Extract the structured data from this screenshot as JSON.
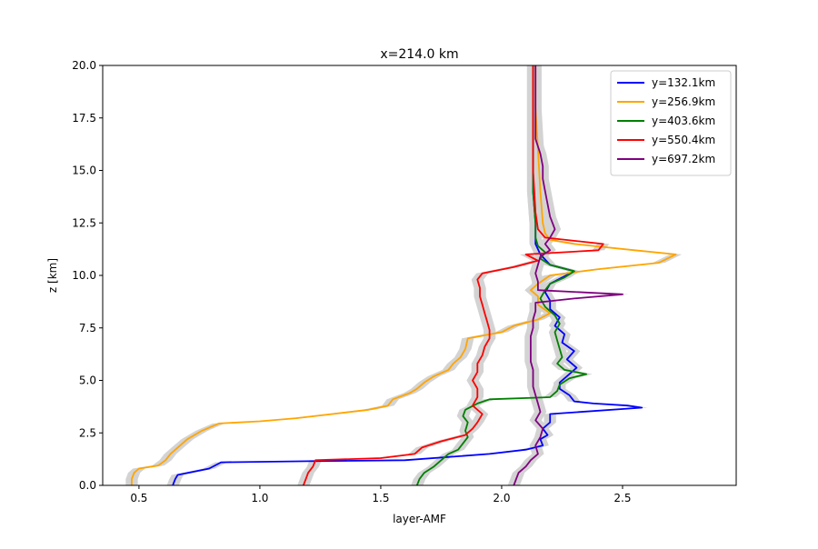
{
  "chart_data": {
    "type": "line",
    "title": "x=214.0 km",
    "xlabel": "layer-AMF",
    "ylabel": "z [km]",
    "xlim": [
      0.35,
      2.97
    ],
    "ylim": [
      0,
      20
    ],
    "xticks": [
      "0.5",
      "1.0",
      "1.5",
      "2.0",
      "2.5"
    ],
    "yticks": [
      "0.0",
      "2.5",
      "5.0",
      "7.5",
      "10.0",
      "12.5",
      "15.0",
      "17.5",
      "20.0"
    ],
    "xtick_values": [
      0.5,
      1.0,
      1.5,
      2.0,
      2.5
    ],
    "ytick_values": [
      0,
      2.5,
      5,
      7.5,
      10,
      12.5,
      15,
      17.5,
      20
    ],
    "grid": false,
    "legend_position": "top-right",
    "band_color": "#d3d3d3",
    "series": [
      {
        "name": "y=132.1km",
        "color": "#0000ff",
        "points": [
          [
            0.64,
            0
          ],
          [
            0.65,
            0.3
          ],
          [
            0.66,
            0.5
          ],
          [
            0.79,
            0.8
          ],
          [
            0.84,
            1.1
          ],
          [
            1.2,
            1.15
          ],
          [
            1.6,
            1.2
          ],
          [
            1.95,
            1.5
          ],
          [
            2.1,
            1.7
          ],
          [
            2.17,
            1.9
          ],
          [
            2.16,
            2.2
          ],
          [
            2.19,
            2.4
          ],
          [
            2.17,
            2.7
          ],
          [
            2.2,
            3.0
          ],
          [
            2.2,
            3.4
          ],
          [
            2.58,
            3.7
          ],
          [
            2.52,
            3.8
          ],
          [
            2.38,
            3.9
          ],
          [
            2.3,
            4.0
          ],
          [
            2.28,
            4.3
          ],
          [
            2.24,
            4.6
          ],
          [
            2.24,
            4.9
          ],
          [
            2.27,
            5.2
          ],
          [
            2.31,
            5.6
          ],
          [
            2.27,
            6.0
          ],
          [
            2.3,
            6.4
          ],
          [
            2.25,
            6.8
          ],
          [
            2.26,
            7.2
          ],
          [
            2.22,
            7.6
          ],
          [
            2.24,
            8.0
          ],
          [
            2.2,
            8.4
          ],
          [
            2.2,
            8.8
          ],
          [
            2.18,
            9.2
          ],
          [
            2.2,
            9.6
          ],
          [
            2.25,
            9.9
          ],
          [
            2.3,
            10.2
          ],
          [
            2.2,
            10.5
          ],
          [
            2.16,
            11.0
          ],
          [
            2.14,
            11.5
          ],
          [
            2.14,
            12.5
          ],
          [
            2.13,
            14.0
          ],
          [
            2.13,
            16.0
          ],
          [
            2.13,
            18.0
          ],
          [
            2.13,
            20.0
          ]
        ]
      },
      {
        "name": "y=256.9km",
        "color": "#ffa500",
        "points": [
          [
            0.47,
            0
          ],
          [
            0.47,
            0.3
          ],
          [
            0.48,
            0.6
          ],
          [
            0.5,
            0.8
          ],
          [
            0.58,
            0.95
          ],
          [
            0.61,
            1.2
          ],
          [
            0.63,
            1.5
          ],
          [
            0.66,
            1.8
          ],
          [
            0.7,
            2.2
          ],
          [
            0.76,
            2.6
          ],
          [
            0.83,
            2.95
          ],
          [
            1.0,
            3.05
          ],
          [
            1.15,
            3.2
          ],
          [
            1.3,
            3.4
          ],
          [
            1.45,
            3.6
          ],
          [
            1.53,
            3.8
          ],
          [
            1.55,
            4.1
          ],
          [
            1.62,
            4.4
          ],
          [
            1.65,
            4.6
          ],
          [
            1.68,
            4.9
          ],
          [
            1.72,
            5.2
          ],
          [
            1.78,
            5.5
          ],
          [
            1.8,
            5.8
          ],
          [
            1.83,
            6.1
          ],
          [
            1.85,
            6.5
          ],
          [
            1.86,
            7.0
          ],
          [
            2.0,
            7.3
          ],
          [
            2.05,
            7.6
          ],
          [
            2.15,
            7.9
          ],
          [
            2.2,
            8.2
          ],
          [
            2.15,
            8.6
          ],
          [
            2.15,
            9.0
          ],
          [
            2.12,
            9.3
          ],
          [
            2.15,
            9.6
          ],
          [
            2.2,
            10.0
          ],
          [
            2.4,
            10.3
          ],
          [
            2.65,
            10.6
          ],
          [
            2.72,
            11.0
          ],
          [
            2.55,
            11.2
          ],
          [
            2.3,
            11.5
          ],
          [
            2.2,
            11.7
          ],
          [
            2.18,
            12.0
          ],
          [
            2.17,
            12.5
          ],
          [
            2.16,
            14.0
          ],
          [
            2.15,
            16.0
          ],
          [
            2.14,
            18.0
          ],
          [
            2.14,
            20.0
          ]
        ]
      },
      {
        "name": "y=403.6km",
        "color": "#008000",
        "points": [
          [
            1.65,
            0
          ],
          [
            1.66,
            0.3
          ],
          [
            1.68,
            0.6
          ],
          [
            1.72,
            0.9
          ],
          [
            1.75,
            1.2
          ],
          [
            1.78,
            1.5
          ],
          [
            1.82,
            1.7
          ],
          [
            1.84,
            2.0
          ],
          [
            1.86,
            2.3
          ],
          [
            1.85,
            2.6
          ],
          [
            1.86,
            3.0
          ],
          [
            1.84,
            3.3
          ],
          [
            1.85,
            3.6
          ],
          [
            1.9,
            3.9
          ],
          [
            1.95,
            4.1
          ],
          [
            2.2,
            4.2
          ],
          [
            2.23,
            4.5
          ],
          [
            2.24,
            4.8
          ],
          [
            2.28,
            5.1
          ],
          [
            2.35,
            5.3
          ],
          [
            2.26,
            5.5
          ],
          [
            2.23,
            5.8
          ],
          [
            2.25,
            6.1
          ],
          [
            2.24,
            6.5
          ],
          [
            2.23,
            6.9
          ],
          [
            2.22,
            7.3
          ],
          [
            2.24,
            7.7
          ],
          [
            2.22,
            8.1
          ],
          [
            2.18,
            8.5
          ],
          [
            2.16,
            8.9
          ],
          [
            2.18,
            9.3
          ],
          [
            2.2,
            9.6
          ],
          [
            2.26,
            9.9
          ],
          [
            2.3,
            10.2
          ],
          [
            2.2,
            10.5
          ],
          [
            2.16,
            10.8
          ],
          [
            2.18,
            11.1
          ],
          [
            2.15,
            11.4
          ],
          [
            2.14,
            11.8
          ],
          [
            2.14,
            12.5
          ],
          [
            2.13,
            14.0
          ],
          [
            2.13,
            16.0
          ],
          [
            2.13,
            18.0
          ],
          [
            2.13,
            20.0
          ]
        ]
      },
      {
        "name": "y=550.4km",
        "color": "#ff0000",
        "points": [
          [
            1.18,
            0
          ],
          [
            1.19,
            0.3
          ],
          [
            1.2,
            0.6
          ],
          [
            1.22,
            0.9
          ],
          [
            1.23,
            1.2
          ],
          [
            1.5,
            1.3
          ],
          [
            1.64,
            1.5
          ],
          [
            1.67,
            1.8
          ],
          [
            1.75,
            2.1
          ],
          [
            1.85,
            2.4
          ],
          [
            1.88,
            2.7
          ],
          [
            1.9,
            3.0
          ],
          [
            1.92,
            3.4
          ],
          [
            1.88,
            3.8
          ],
          [
            1.9,
            4.2
          ],
          [
            1.9,
            4.6
          ],
          [
            1.88,
            5.0
          ],
          [
            1.9,
            5.4
          ],
          [
            1.9,
            5.8
          ],
          [
            1.92,
            6.2
          ],
          [
            1.93,
            6.6
          ],
          [
            1.95,
            7.0
          ],
          [
            1.95,
            7.4
          ],
          [
            1.94,
            7.8
          ],
          [
            1.93,
            8.2
          ],
          [
            1.92,
            8.6
          ],
          [
            1.91,
            9.0
          ],
          [
            1.91,
            9.4
          ],
          [
            1.9,
            9.8
          ],
          [
            1.92,
            10.1
          ],
          [
            2.05,
            10.4
          ],
          [
            2.15,
            10.7
          ],
          [
            2.1,
            11.0
          ],
          [
            2.4,
            11.2
          ],
          [
            2.42,
            11.5
          ],
          [
            2.18,
            11.8
          ],
          [
            2.15,
            12.2
          ],
          [
            2.14,
            13.0
          ],
          [
            2.13,
            15.0
          ],
          [
            2.13,
            17.0
          ],
          [
            2.13,
            20.0
          ]
        ]
      },
      {
        "name": "y=697.2km",
        "color": "#800080",
        "points": [
          [
            2.05,
            0
          ],
          [
            2.06,
            0.3
          ],
          [
            2.07,
            0.6
          ],
          [
            2.1,
            0.9
          ],
          [
            2.12,
            1.2
          ],
          [
            2.15,
            1.5
          ],
          [
            2.14,
            1.9
          ],
          [
            2.16,
            2.3
          ],
          [
            2.17,
            2.7
          ],
          [
            2.14,
            3.1
          ],
          [
            2.16,
            3.5
          ],
          [
            2.15,
            3.9
          ],
          [
            2.14,
            4.3
          ],
          [
            2.13,
            4.7
          ],
          [
            2.13,
            5.1
          ],
          [
            2.13,
            5.5
          ],
          [
            2.12,
            5.9
          ],
          [
            2.12,
            6.3
          ],
          [
            2.12,
            6.7
          ],
          [
            2.12,
            7.1
          ],
          [
            2.13,
            7.5
          ],
          [
            2.13,
            7.9
          ],
          [
            2.14,
            8.3
          ],
          [
            2.14,
            8.7
          ],
          [
            2.3,
            8.9
          ],
          [
            2.5,
            9.1
          ],
          [
            2.15,
            9.3
          ],
          [
            2.15,
            9.7
          ],
          [
            2.14,
            10.1
          ],
          [
            2.15,
            10.5
          ],
          [
            2.16,
            10.9
          ],
          [
            2.2,
            11.2
          ],
          [
            2.18,
            11.5
          ],
          [
            2.2,
            11.8
          ],
          [
            2.22,
            12.2
          ],
          [
            2.2,
            12.8
          ],
          [
            2.19,
            13.4
          ],
          [
            2.18,
            14.0
          ],
          [
            2.17,
            14.6
          ],
          [
            2.17,
            15.2
          ],
          [
            2.16,
            15.8
          ],
          [
            2.14,
            16.5
          ],
          [
            2.14,
            17.5
          ],
          [
            2.14,
            18.5
          ],
          [
            2.14,
            20.0
          ]
        ]
      }
    ]
  }
}
